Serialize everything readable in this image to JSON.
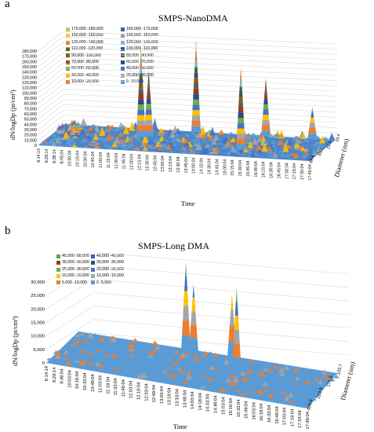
{
  "chart_data": [
    {
      "panel_letter": "a",
      "type": "area",
      "title": "SMPS-NanoDMA",
      "xlabel": "Time",
      "ylabel": "dN/logDp (pt/cm³)",
      "zlabel": "Diameter (nm)",
      "ylim": [
        0,
        180000
      ],
      "y_ticks": [
        "0",
        "10,000",
        "20,000",
        "30,000",
        "40,000",
        "50,000",
        "60,000",
        "70,000",
        "80,000",
        "90,000",
        "100,000",
        "110,000",
        "120,000",
        "130,000",
        "140,000",
        "150,000",
        "160,000",
        "170,000",
        "180,000"
      ],
      "x_ticks": [
        "8:14:14",
        "8:29:14",
        "8:38:14",
        "8:45:04",
        "10:00:04",
        "10:15:04",
        "10:30:04",
        "10:45:04",
        "11:00:04",
        "11:15:04",
        "11:30:04",
        "11:45:04",
        "12:00:04",
        "12:15:04",
        "12:30:04",
        "12:45:04",
        "13:00:04",
        "13:15:04",
        "13:30:04",
        "13:45:04",
        "14:00:04",
        "14:15:04",
        "14:30:04",
        "14:45:04",
        "15:00:04",
        "15:15:04",
        "15:30:04",
        "15:45:04",
        "16:00:04",
        "16:15:04",
        "16:30:04",
        "16:45:04",
        "17:00:04",
        "17:15:04",
        "17:30:04",
        "17:45:04"
      ],
      "z_ticks": [
        "10.4",
        "21.5",
        "43.7",
        "89.8"
      ],
      "legend": [
        {
          "label": "170,000 -180,000",
          "color": "#a6d35b"
        },
        {
          "label": "160,000 -170,000",
          "color": "#3a5fa8"
        },
        {
          "label": "150,000 -160,000",
          "color": "#f5c542"
        },
        {
          "label": "140,000 -150,000",
          "color": "#9b9b9b"
        },
        {
          "label": "130,000 -140,000",
          "color": "#e87d2b"
        },
        {
          "label": "120,000 -130,000",
          "color": "#7fb2df"
        },
        {
          "label": "110,000 -120,000",
          "color": "#3b6e2c"
        },
        {
          "label": "100,000 -110,000",
          "color": "#2f4e7e"
        },
        {
          "label": "90,000 -100,000",
          "color": "#8c5b14"
        },
        {
          "label": "80,000 -90,000",
          "color": "#5c5c5c"
        },
        {
          "label": "70,000 -80,000",
          "color": "#9c3a12"
        },
        {
          "label": "60,000 -70,000",
          "color": "#234d8c"
        },
        {
          "label": "50,000 -60,000",
          "color": "#71ad47"
        },
        {
          "label": "40,000 -50,000",
          "color": "#4472c4"
        },
        {
          "label": "30,000 -40,000",
          "color": "#ffc000"
        },
        {
          "label": "20,000 -30,000",
          "color": "#a5a5a5"
        },
        {
          "label": "10,000 -20,000",
          "color": "#ed7d31"
        },
        {
          "label": "0 -10,000",
          "color": "#5b9bd5"
        }
      ],
      "peaks": [
        {
          "time": "11:45:04",
          "diameter": "21.5",
          "value": 170000
        },
        {
          "time": "12:00:04",
          "diameter": "21.5",
          "value": 125000
        },
        {
          "time": "13:15:04",
          "diameter": "10.4",
          "value": 175000
        },
        {
          "time": "15:15:04",
          "diameter": "43.7",
          "value": 160000
        },
        {
          "time": "15:30:04",
          "diameter": "10.4",
          "value": 110000
        },
        {
          "time": "17:00:04",
          "diameter": "10.4",
          "value": 60000
        }
      ]
    },
    {
      "panel_letter": "b",
      "type": "area",
      "title": "SMPS-Long DMA",
      "xlabel": "Time",
      "ylabel": "dN/logDp (pt/cm³)",
      "zlabel": "Diameter (nm)",
      "ylim": [
        0,
        50000
      ],
      "y_ticks": [
        "0",
        "5,000",
        "10,000",
        "15,000",
        "20,000",
        "25,000",
        "30,000"
      ],
      "x_ticks": [
        "8:14:14",
        "8:29:14",
        "9:48:04",
        "10:03:04",
        "10:18:04",
        "10:33:04",
        "10:48:04",
        "11:03:04",
        "11:18:04",
        "11:33:04",
        "11:48:04",
        "12:03:04",
        "12:18:04",
        "12:33:04",
        "12:48:04",
        "13:03:04",
        "13:18:04",
        "13:33:04",
        "13:48:04",
        "14:03:04",
        "14:18:04",
        "14:33:04",
        "14:48:04",
        "15:03:04",
        "15:18:04",
        "15:33:04",
        "15:48:04",
        "16:03:04",
        "16:18:04",
        "16:33:04",
        "16:48:04",
        "17:03:04",
        "17:18:04",
        "17:33:04",
        "17:48:04"
      ],
      "z_ticks": [
        "103.7",
        "171.5",
        "283.9",
        "469.8"
      ],
      "legend": [
        {
          "label": "45,000 -50,000",
          "color": "#5fa83a"
        },
        {
          "label": "40,000 -45,000",
          "color": "#3a5fa8"
        },
        {
          "label": "35,000 -40,000",
          "color": "#9c3a12"
        },
        {
          "label": "30,000 -35,000",
          "color": "#2f4e7e"
        },
        {
          "label": "25,000 -30,000",
          "color": "#71ad47"
        },
        {
          "label": "20,000 -25,000",
          "color": "#4472c4"
        },
        {
          "label": "15,000 -20,000",
          "color": "#ffc000"
        },
        {
          "label": "10,000 -15,000",
          "color": "#a5a5a5"
        },
        {
          "label": "5,000 -10,000",
          "color": "#ed7d31"
        },
        {
          "label": "0 -5,000",
          "color": "#5b9bd5"
        }
      ],
      "peaks": [
        {
          "time": "12:48:04",
          "diameter": "103.7",
          "value": 33000
        },
        {
          "time": "13:03:04",
          "diameter": "103.7",
          "value": 25000
        },
        {
          "time": "14:18:04",
          "diameter": "103.7",
          "value": 24000
        },
        {
          "time": "14:48:04",
          "diameter": "171.5",
          "value": 31000
        }
      ]
    }
  ]
}
